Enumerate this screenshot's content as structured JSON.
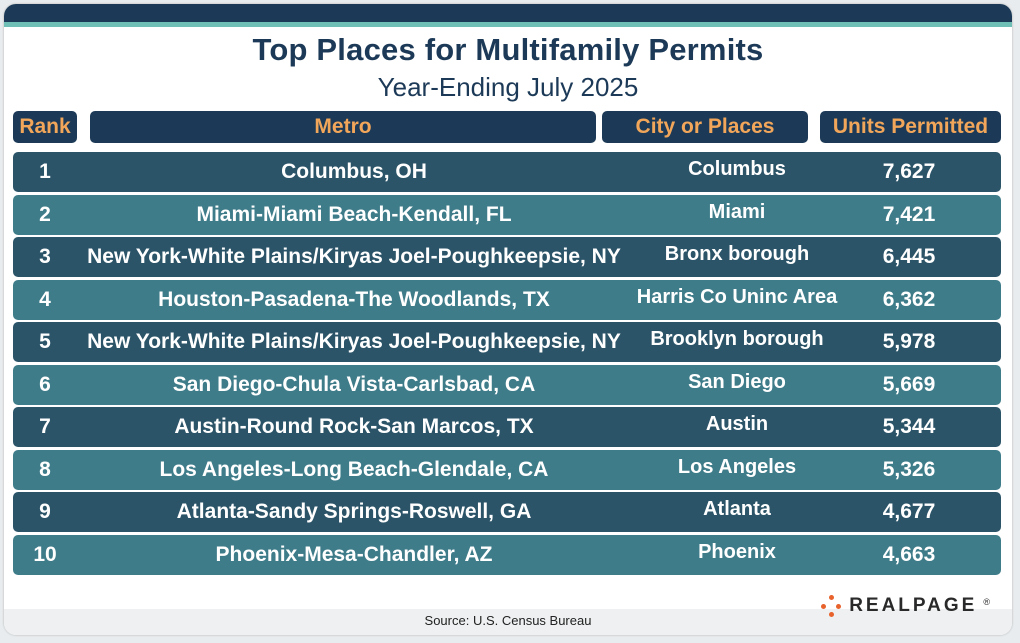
{
  "chart_data": {
    "type": "table",
    "title": "Top Places for Multifamily Permits",
    "subtitle": "Year-Ending July 2025",
    "columns": [
      "Rank",
      "Metro",
      "City or Places",
      "Units Permitted"
    ],
    "rows": [
      {
        "rank": "1",
        "metro": "Columbus, OH",
        "city": "Columbus",
        "units": "7,627"
      },
      {
        "rank": "2",
        "metro": "Miami-Miami Beach-Kendall, FL",
        "city": "Miami",
        "units": "7,421"
      },
      {
        "rank": "3",
        "metro": "New York-White Plains/Kiryas Joel-Poughkeepsie, NY",
        "city": "Bronx borough",
        "units": "6,445"
      },
      {
        "rank": "4",
        "metro": "Houston-Pasadena-The Woodlands, TX",
        "city": "Harris Co Uninc Area",
        "units": "6,362"
      },
      {
        "rank": "5",
        "metro": "New York-White Plains/Kiryas Joel-Poughkeepsie, NY",
        "city": "Brooklyn borough",
        "units": "5,978"
      },
      {
        "rank": "6",
        "metro": "San Diego-Chula Vista-Carlsbad, CA",
        "city": "San Diego",
        "units": "5,669"
      },
      {
        "rank": "7",
        "metro": "Austin-Round Rock-San Marcos, TX",
        "city": "Austin",
        "units": "5,344"
      },
      {
        "rank": "8",
        "metro": "Los Angeles-Long Beach-Glendale, CA",
        "city": "Los Angeles",
        "units": "5,326"
      },
      {
        "rank": "9",
        "metro": "Atlanta-Sandy Springs-Roswell, GA",
        "city": "Atlanta",
        "units": "4,677"
      },
      {
        "rank": "10",
        "metro": "Phoenix-Mesa-Chandler, AZ",
        "city": "Phoenix",
        "units": "4,663"
      }
    ],
    "source": "Source: U.S. Census Bureau"
  },
  "brand": {
    "logo_text": "REALPAGE",
    "logo_mark": "®"
  },
  "colors": {
    "navy": "#1c3a57",
    "header_text": "#f2a65a",
    "row_dark": "#2b5468",
    "row_light": "#3f7c8a",
    "accent_teal": "#6fbfb6",
    "logo_orange": "#e8622c"
  }
}
